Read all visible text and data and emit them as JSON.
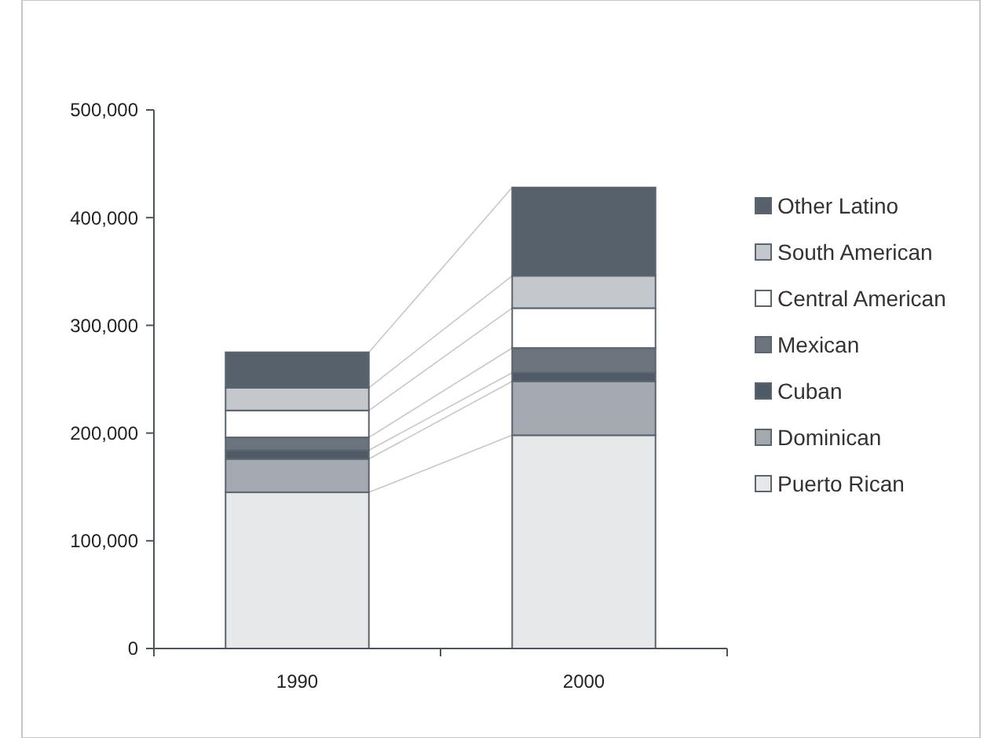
{
  "chart_data": {
    "type": "bar",
    "stacked": true,
    "categories": [
      "1990",
      "2000"
    ],
    "series": [
      {
        "name": "Puerto Rican",
        "color": "#e6e8ea",
        "values": [
          145000,
          198000
        ]
      },
      {
        "name": "Dominican",
        "color": "#a3a9ae",
        "values": [
          31000,
          50000
        ]
      },
      {
        "name": "Cuban",
        "color": "#4e5a65",
        "values": [
          8000,
          8000
        ]
      },
      {
        "name": "Mexican",
        "color": "#6b747c",
        "values": [
          12000,
          23000
        ]
      },
      {
        "name": "Central American",
        "color": "#ffffff",
        "values": [
          25000,
          37000
        ]
      },
      {
        "name": "South American",
        "color": "#c4c8cc",
        "values": [
          21000,
          30000
        ]
      },
      {
        "name": "Other Latino",
        "color": "#56616b",
        "values": [
          33000,
          82000
        ]
      }
    ],
    "ylim": [
      0,
      500000
    ],
    "yticks": [
      {
        "value": 0,
        "label": "0"
      },
      {
        "value": 100000,
        "label": "100,000"
      },
      {
        "value": 200000,
        "label": "200,000"
      },
      {
        "value": 300000,
        "label": "300,000"
      },
      {
        "value": 400000,
        "label": "400,000"
      },
      {
        "value": 500000,
        "label": "500,000"
      }
    ],
    "grid": false,
    "legend": "right"
  }
}
